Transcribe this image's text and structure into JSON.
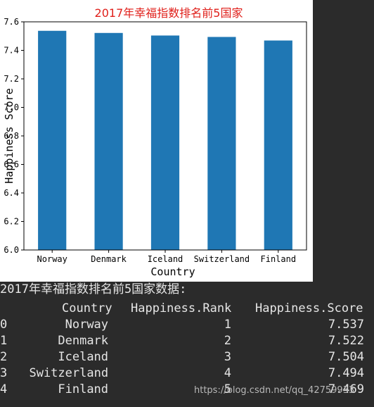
{
  "chart_data": {
    "type": "bar",
    "title": "2017年幸福指数排名前5国家",
    "xlabel": "Country",
    "ylabel": "Happiness Score",
    "categories": [
      "Norway",
      "Denmark",
      "Iceland",
      "Switzerland",
      "Finland"
    ],
    "values": [
      7.537,
      7.522,
      7.504,
      7.494,
      7.469
    ],
    "ylim": [
      6.0,
      7.6
    ],
    "yticks": [
      "6.0",
      "6.2",
      "6.4",
      "6.6",
      "6.8",
      "7.0",
      "7.2",
      "7.4",
      "7.6"
    ],
    "grid": false,
    "bar_color": "#1f77b4",
    "title_color": "#e0201b"
  },
  "console": {
    "caption": "2017年幸福指数排名前5国家数据:",
    "columns": [
      "Country",
      "Happiness.Rank",
      "Happiness.Score"
    ],
    "rows": [
      {
        "index": "0",
        "country": "Norway",
        "rank": "1",
        "score": "7.537"
      },
      {
        "index": "1",
        "country": "Denmark",
        "rank": "2",
        "score": "7.522"
      },
      {
        "index": "2",
        "country": "Iceland",
        "rank": "3",
        "score": "7.504"
      },
      {
        "index": "3",
        "country": "Switzerland",
        "rank": "4",
        "score": "7.494"
      },
      {
        "index": "4",
        "country": "Finland",
        "rank": "5",
        "score": "7.469"
      }
    ]
  },
  "watermark": "https://blog.csdn.net/qq_42759933"
}
